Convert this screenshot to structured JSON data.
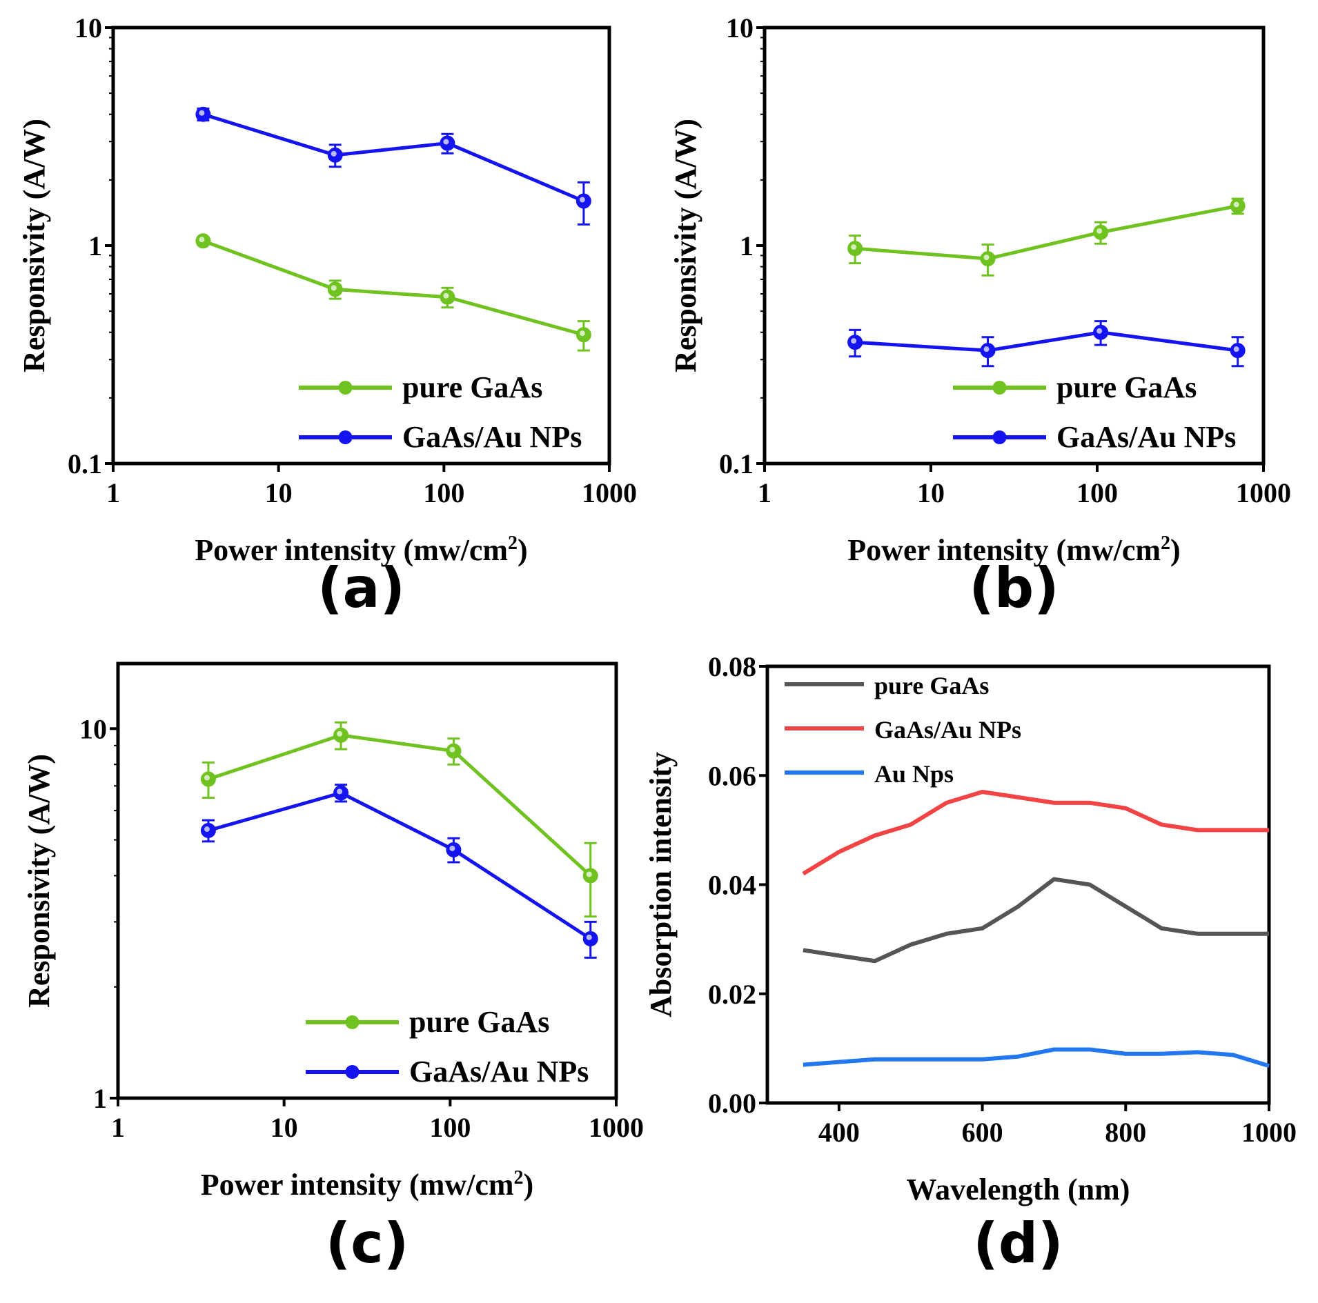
{
  "chart_data": [
    {
      "id": "a",
      "panel_label": "(a)",
      "type": "line",
      "xscale": "log",
      "yscale": "log",
      "xlabel": "Power intensity (mw/cm",
      "xlabel_sup": "2",
      "xlabel_end": ")",
      "ylabel": "Responsivity (A/W)",
      "xlim": [
        1,
        1000
      ],
      "ylim": [
        0.1,
        10
      ],
      "xticks": [
        1,
        10,
        100,
        1000
      ],
      "xtick_labels": [
        "1",
        "10",
        "100",
        "1000"
      ],
      "yticks": [
        0.1,
        1,
        10
      ],
      "ytick_labels": [
        "0.1",
        "1",
        "10"
      ],
      "legend_position": "bottom-right",
      "series": [
        {
          "name": "pure GaAs",
          "color": "#6fc21f",
          "x": [
            3.5,
            22,
            105,
            700
          ],
          "y": [
            1.05,
            0.63,
            0.58,
            0.39
          ],
          "err": [
            0.04,
            0.06,
            0.06,
            0.06
          ]
        },
        {
          "name": "GaAs/Au NPs",
          "color": "#1414f0",
          "x": [
            3.5,
            22,
            105,
            700
          ],
          "y": [
            4.0,
            2.6,
            2.95,
            1.6
          ],
          "err": [
            0.25,
            0.3,
            0.3,
            0.35
          ]
        }
      ]
    },
    {
      "id": "b",
      "panel_label": "(b)",
      "type": "line",
      "xscale": "log",
      "yscale": "log",
      "xlabel": "Power intensity (mw/cm",
      "xlabel_sup": "2",
      "xlabel_end": ")",
      "ylabel": "Responsivity (A/W)",
      "xlim": [
        1,
        1000
      ],
      "ylim": [
        0.1,
        10
      ],
      "xticks": [
        1,
        10,
        100,
        1000
      ],
      "xtick_labels": [
        "1",
        "10",
        "100",
        "1000"
      ],
      "yticks": [
        0.1,
        1,
        10
      ],
      "ytick_labels": [
        "0.1",
        "1",
        "10"
      ],
      "legend_position": "bottom-right",
      "series": [
        {
          "name": "pure GaAs",
          "color": "#6fc21f",
          "x": [
            3.5,
            22,
            105,
            700
          ],
          "y": [
            0.97,
            0.87,
            1.15,
            1.52
          ],
          "err": [
            0.14,
            0.14,
            0.13,
            0.12
          ]
        },
        {
          "name": "GaAs/Au NPs",
          "color": "#1414f0",
          "x": [
            3.5,
            22,
            105,
            700
          ],
          "y": [
            0.36,
            0.33,
            0.4,
            0.33
          ],
          "err": [
            0.05,
            0.05,
            0.05,
            0.05
          ]
        }
      ]
    },
    {
      "id": "c",
      "panel_label": "(c)",
      "type": "line",
      "xscale": "log",
      "yscale": "log",
      "xlabel": "Power intensity (mw/cm",
      "xlabel_sup": "2",
      "xlabel_end": ")",
      "ylabel": "Responsivity (A/W)",
      "xlim": [
        1,
        1000
      ],
      "ylim": [
        1,
        15
      ],
      "xticks": [
        1,
        10,
        100,
        1000
      ],
      "xtick_labels": [
        "1",
        "10",
        "100",
        "1000"
      ],
      "yticks": [
        1,
        10
      ],
      "ytick_labels": [
        "1",
        "10"
      ],
      "legend_position": "bottom-right",
      "series": [
        {
          "name": "pure GaAs",
          "color": "#6fc21f",
          "x": [
            3.5,
            22,
            105,
            700
          ],
          "y": [
            7.3,
            9.6,
            8.7,
            4.0
          ],
          "err": [
            0.8,
            0.8,
            0.7,
            0.9
          ]
        },
        {
          "name": "GaAs/Au NPs",
          "color": "#1414f0",
          "x": [
            3.5,
            22,
            105,
            700
          ],
          "y": [
            5.3,
            6.7,
            4.7,
            2.7
          ],
          "err": [
            0.35,
            0.35,
            0.35,
            0.3
          ]
        }
      ]
    },
    {
      "id": "d",
      "panel_label": "(d)",
      "type": "line",
      "xscale": "linear",
      "yscale": "linear",
      "xlabel": "Wavelength (nm)",
      "xlabel_sup": "",
      "xlabel_end": "",
      "ylabel": "Absorption intensity",
      "xlim": [
        300,
        1000
      ],
      "ylim": [
        0,
        0.08
      ],
      "xticks": [
        400,
        600,
        800,
        1000
      ],
      "xtick_labels": [
        "400",
        "600",
        "800",
        "1000"
      ],
      "yticks": [
        0,
        0.02,
        0.04,
        0.06,
        0.08
      ],
      "ytick_labels": [
        "0.00",
        "0.02",
        "0.04",
        "0.06",
        "0.08"
      ],
      "legend_position": "top-left",
      "series": [
        {
          "name": "pure GaAs",
          "color": "#555555",
          "x": [
            350,
            400,
            450,
            500,
            550,
            600,
            650,
            700,
            750,
            800,
            850,
            900,
            950,
            1000
          ],
          "y": [
            0.028,
            0.027,
            0.026,
            0.029,
            0.031,
            0.032,
            0.036,
            0.041,
            0.04,
            0.036,
            0.032,
            0.031,
            0.031,
            0.031
          ]
        },
        {
          "name": "GaAs/Au NPs",
          "color": "#f24444",
          "x": [
            350,
            400,
            450,
            500,
            550,
            600,
            650,
            700,
            750,
            800,
            850,
            900,
            950,
            1000
          ],
          "y": [
            0.042,
            0.046,
            0.049,
            0.051,
            0.055,
            0.057,
            0.056,
            0.055,
            0.055,
            0.054,
            0.051,
            0.05,
            0.05,
            0.05
          ]
        },
        {
          "name": "Au Nps",
          "color": "#2277ee",
          "x": [
            350,
            400,
            450,
            500,
            550,
            600,
            650,
            700,
            750,
            800,
            850,
            900,
            950,
            1000
          ],
          "y": [
            0.007,
            0.0075,
            0.008,
            0.008,
            0.008,
            0.008,
            0.0085,
            0.0098,
            0.0098,
            0.009,
            0.009,
            0.0093,
            0.0088,
            0.0068
          ]
        }
      ]
    }
  ]
}
